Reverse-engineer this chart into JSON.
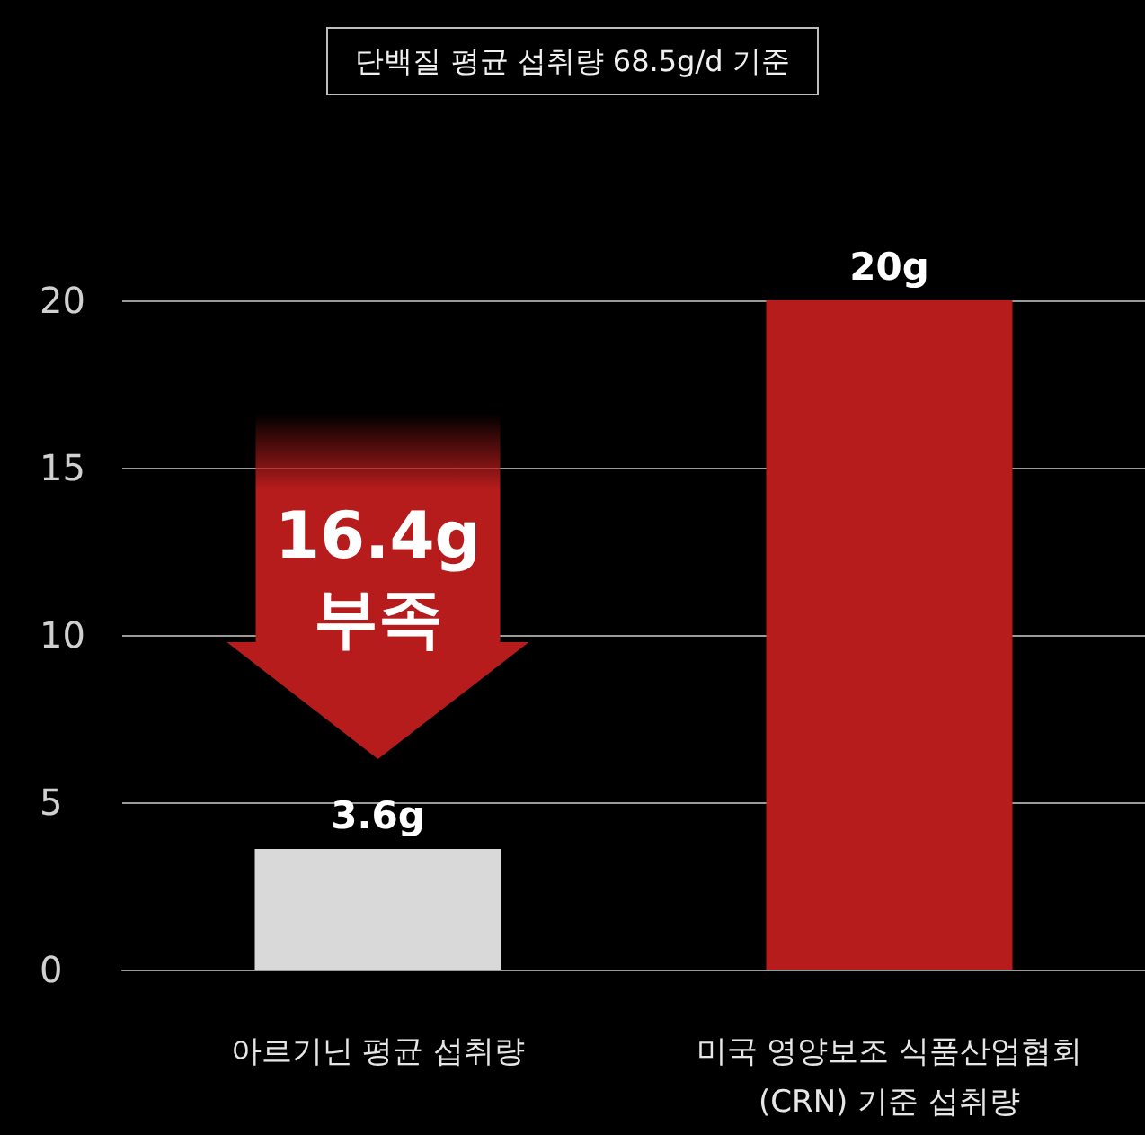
{
  "chart_data": {
    "type": "bar",
    "subtitle": "단백질 평균 섭취량 68.5g/d 기준",
    "categories": [
      "아르기닌 평균 섭취량",
      "미국 영양보조 식품산업협회\n(CRN) 기준 섭취량"
    ],
    "values": [
      3.6,
      20
    ],
    "colors": [
      "#d9d9d9",
      "#b71c1c"
    ],
    "value_labels": [
      "3.6g",
      "20g"
    ],
    "annotations": [
      "16.4g\n부족"
    ],
    "ylim": [
      0,
      20
    ],
    "yticks": [
      0,
      5,
      10,
      15,
      20
    ],
    "grid": "y"
  }
}
